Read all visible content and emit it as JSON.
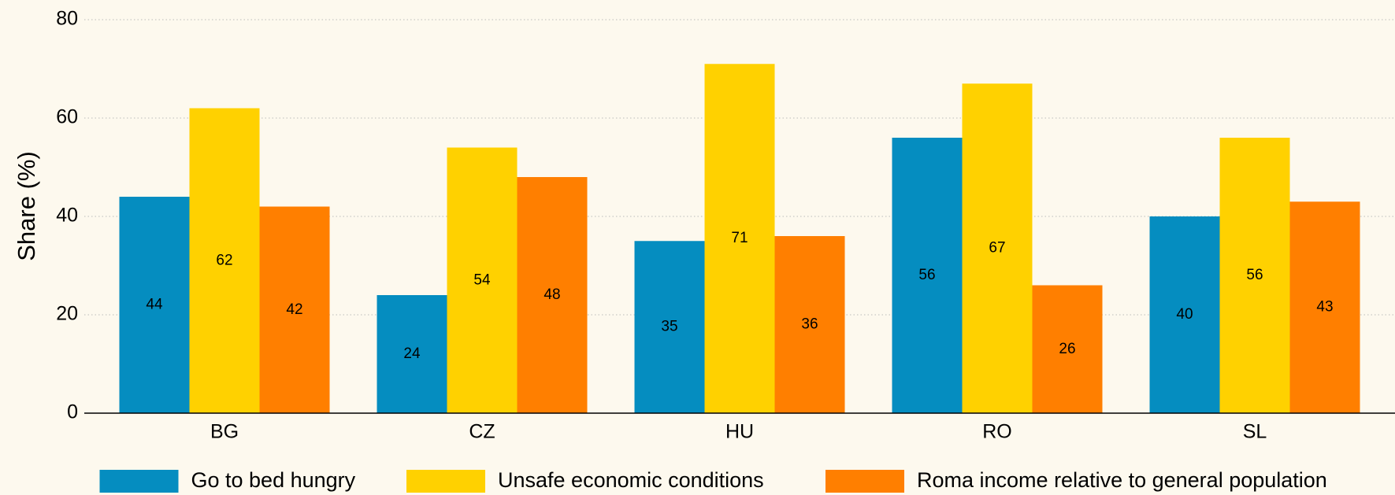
{
  "chart_data": {
    "type": "bar",
    "y_label": "Share (%)",
    "categories": [
      "BG",
      "CZ",
      "HU",
      "RO",
      "SL"
    ],
    "series": [
      {
        "name": "Go to bed hungry",
        "color": "#058dc0",
        "values": [
          44,
          24,
          35,
          56,
          40
        ]
      },
      {
        "name": "Unsafe economic conditions",
        "color": "#ffd100",
        "values": [
          62,
          54,
          71,
          67,
          56
        ]
      },
      {
        "name": "Roma income relative to general population",
        "color": "#ff7f00",
        "values": [
          42,
          48,
          36,
          26,
          43
        ]
      }
    ],
    "ylim": [
      0,
      80
    ],
    "yticks": [
      0,
      20,
      40,
      60,
      80
    ],
    "grid": true,
    "legend": "bottom"
  }
}
